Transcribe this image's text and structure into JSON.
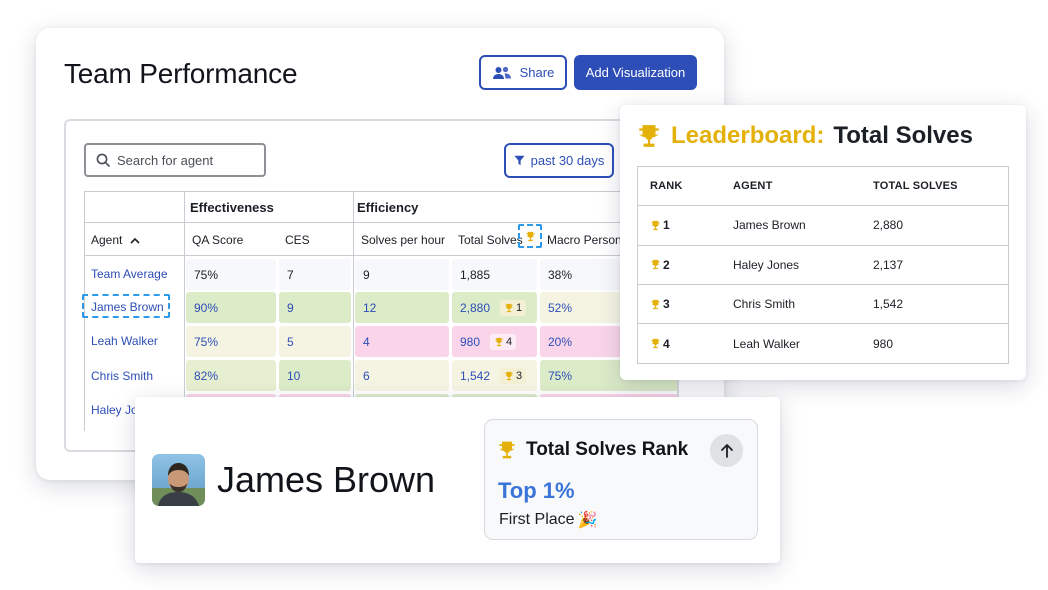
{
  "colors": {
    "accent": "#2d4eb7",
    "gold": "#e3b10a",
    "rank_blue": "#3b74d8",
    "selection": "#2e9bea"
  },
  "main": {
    "title": "Team Performance",
    "share_label": "Share",
    "share_icon": "users-icon",
    "add_visualization_label": "Add Visualization",
    "search_placeholder": "Search for agent",
    "filter_label": "past 30 days",
    "table": {
      "groups": [
        "Effectiveness",
        "Efficiency"
      ],
      "columns": [
        "Agent",
        "QA Score",
        "CES",
        "Solves per hour",
        "Total Solves",
        "Macro Persona"
      ],
      "sort_column": "Agent",
      "rows": [
        {
          "agent": "Team Average",
          "qa": "75%",
          "ces": "7",
          "sph": "9",
          "total": "1,885",
          "rank": "",
          "macro": "38%"
        },
        {
          "agent": "James Brown",
          "qa": "90%",
          "ces": "9",
          "sph": "12",
          "total": "2,880",
          "rank": "1",
          "macro": "52%"
        },
        {
          "agent": "Leah Walker",
          "qa": "75%",
          "ces": "5",
          "sph": "4",
          "total": "980",
          "rank": "4",
          "macro": "20%"
        },
        {
          "agent": "Chris Smith",
          "qa": "82%",
          "ces": "10",
          "sph": "6",
          "total": "1,542",
          "rank": "3",
          "macro": "75%"
        },
        {
          "agent": "Haley Jo",
          "qa": "",
          "ces": "",
          "sph": "",
          "total": "",
          "rank": "",
          "macro": ""
        }
      ]
    }
  },
  "leaderboard": {
    "title_prefix": "Leaderboard:",
    "title_suffix": "Total Solves",
    "headers": [
      "RANK",
      "AGENT",
      "TOTAL SOLVES"
    ],
    "rows": [
      {
        "rank": "1",
        "agent": "James Brown",
        "total": "2,880"
      },
      {
        "rank": "2",
        "agent": "Haley Jones",
        "total": "2,137"
      },
      {
        "rank": "3",
        "agent": "Chris Smith",
        "total": "1,542"
      },
      {
        "rank": "4",
        "agent": "Leah Walker",
        "total": "980"
      }
    ]
  },
  "profile": {
    "name": "James Brown",
    "rank_title": "Total Solves Rank",
    "rank_value": "Top 1%",
    "rank_note": "First Place",
    "rank_note_emoji": "🎉"
  }
}
